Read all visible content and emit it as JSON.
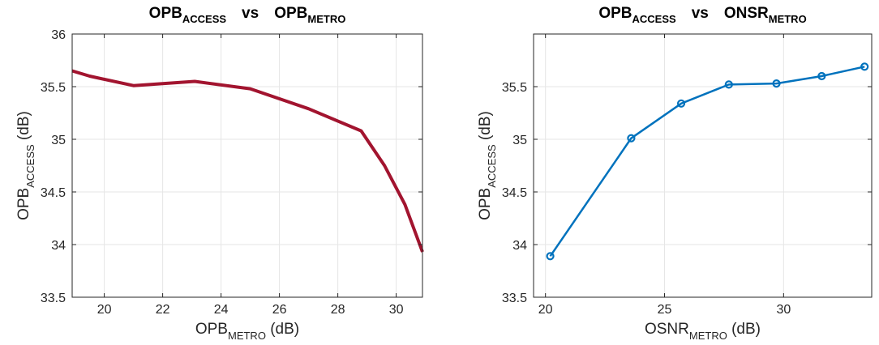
{
  "chart_data": [
    {
      "type": "line",
      "title": {
        "main": "OPB",
        "sub": "ACCESS",
        "vs": "vs",
        "main2": "OPB",
        "sub2": "METRO"
      },
      "xlabel": {
        "main": "OPB",
        "sub": "METRO",
        "unit": "(dB)"
      },
      "ylabel": {
        "main": "OPB",
        "sub": "ACCESS",
        "unit": "(dB)"
      },
      "xlim": [
        18.9,
        30.9
      ],
      "ylim": [
        33.5,
        36
      ],
      "xticks": [
        20,
        22,
        24,
        26,
        28,
        30
      ],
      "yticks": [
        33.5,
        34,
        34.5,
        35,
        35.5,
        36
      ],
      "grid": true,
      "color": "#A2142F",
      "markers": false,
      "x": [
        18.9,
        19.5,
        21.0,
        23.1,
        25.0,
        27.0,
        28.8,
        29.6,
        30.3,
        30.9
      ],
      "y": [
        35.65,
        35.6,
        35.51,
        35.55,
        35.48,
        35.29,
        35.08,
        34.75,
        34.38,
        33.93
      ]
    },
    {
      "type": "line",
      "title": {
        "main": "OPB",
        "sub": "ACCESS",
        "vs": "vs",
        "main2": "ONSR",
        "sub2": "METRO"
      },
      "xlabel": {
        "main": "OSNR",
        "sub": "METRO",
        "unit": "(dB)"
      },
      "ylabel": {
        "main": "OPB",
        "sub": "ACCESS",
        "unit": "(dB)"
      },
      "xlim": [
        19.5,
        33.7
      ],
      "ylim": [
        33.5,
        36
      ],
      "xticks": [
        20,
        25,
        30
      ],
      "yticks": [
        33.5,
        34,
        34.5,
        35,
        35.5
      ],
      "grid": true,
      "color": "#0072BD",
      "markers": true,
      "x": [
        20.2,
        23.6,
        25.7,
        27.7,
        29.7,
        31.6,
        33.4
      ],
      "y": [
        33.89,
        35.01,
        35.34,
        35.52,
        35.53,
        35.6,
        35.69
      ]
    }
  ]
}
